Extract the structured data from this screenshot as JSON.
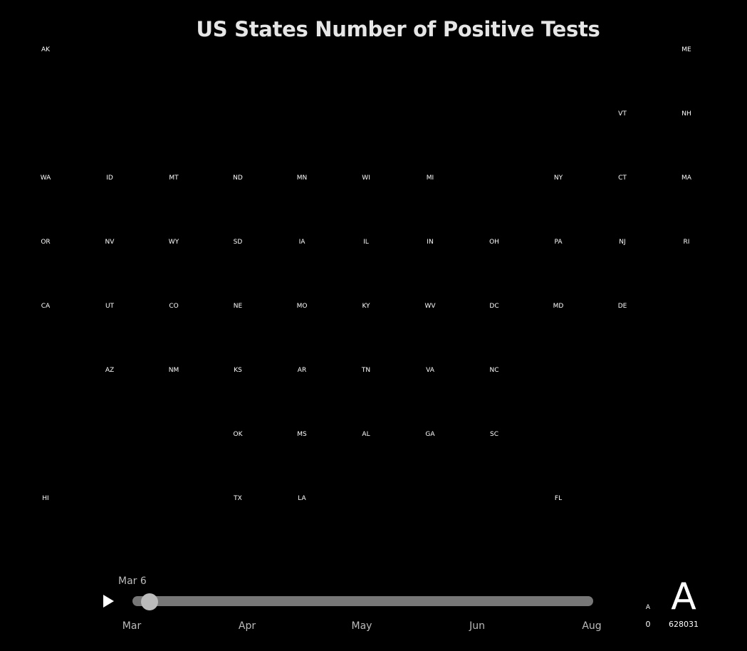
{
  "chart_data": {
    "type": "tile-grid-map",
    "title": "US States Number of Positive Tests",
    "grid_columns": 11,
    "grid_rows": 8,
    "states": [
      {
        "abbr": "AK",
        "col": 0,
        "row": 0
      },
      {
        "abbr": "ME",
        "col": 10,
        "row": 0
      },
      {
        "abbr": "VT",
        "col": 9,
        "row": 1
      },
      {
        "abbr": "NH",
        "col": 10,
        "row": 1
      },
      {
        "abbr": "WA",
        "col": 0,
        "row": 2
      },
      {
        "abbr": "ID",
        "col": 1,
        "row": 2
      },
      {
        "abbr": "MT",
        "col": 2,
        "row": 2
      },
      {
        "abbr": "ND",
        "col": 3,
        "row": 2
      },
      {
        "abbr": "MN",
        "col": 4,
        "row": 2
      },
      {
        "abbr": "WI",
        "col": 5,
        "row": 2
      },
      {
        "abbr": "MI",
        "col": 6,
        "row": 2
      },
      {
        "abbr": "NY",
        "col": 8,
        "row": 2
      },
      {
        "abbr": "CT",
        "col": 9,
        "row": 2
      },
      {
        "abbr": "MA",
        "col": 10,
        "row": 2
      },
      {
        "abbr": "OR",
        "col": 0,
        "row": 3
      },
      {
        "abbr": "NV",
        "col": 1,
        "row": 3
      },
      {
        "abbr": "WY",
        "col": 2,
        "row": 3
      },
      {
        "abbr": "SD",
        "col": 3,
        "row": 3
      },
      {
        "abbr": "IA",
        "col": 4,
        "row": 3
      },
      {
        "abbr": "IL",
        "col": 5,
        "row": 3
      },
      {
        "abbr": "IN",
        "col": 6,
        "row": 3
      },
      {
        "abbr": "OH",
        "col": 7,
        "row": 3
      },
      {
        "abbr": "PA",
        "col": 8,
        "row": 3
      },
      {
        "abbr": "NJ",
        "col": 9,
        "row": 3
      },
      {
        "abbr": "RI",
        "col": 10,
        "row": 3
      },
      {
        "abbr": "CA",
        "col": 0,
        "row": 4
      },
      {
        "abbr": "UT",
        "col": 1,
        "row": 4
      },
      {
        "abbr": "CO",
        "col": 2,
        "row": 4
      },
      {
        "abbr": "NE",
        "col": 3,
        "row": 4
      },
      {
        "abbr": "MO",
        "col": 4,
        "row": 4
      },
      {
        "abbr": "KY",
        "col": 5,
        "row": 4
      },
      {
        "abbr": "WV",
        "col": 6,
        "row": 4
      },
      {
        "abbr": "DC",
        "col": 7,
        "row": 4
      },
      {
        "abbr": "MD",
        "col": 8,
        "row": 4
      },
      {
        "abbr": "DE",
        "col": 9,
        "row": 4
      },
      {
        "abbr": "AZ",
        "col": 1,
        "row": 5
      },
      {
        "abbr": "NM",
        "col": 2,
        "row": 5
      },
      {
        "abbr": "KS",
        "col": 3,
        "row": 5
      },
      {
        "abbr": "AR",
        "col": 4,
        "row": 5
      },
      {
        "abbr": "TN",
        "col": 5,
        "row": 5
      },
      {
        "abbr": "VA",
        "col": 6,
        "row": 5
      },
      {
        "abbr": "NC",
        "col": 7,
        "row": 5
      },
      {
        "abbr": "OK",
        "col": 3,
        "row": 6
      },
      {
        "abbr": "MS",
        "col": 4,
        "row": 6
      },
      {
        "abbr": "AL",
        "col": 5,
        "row": 6
      },
      {
        "abbr": "GA",
        "col": 6,
        "row": 6
      },
      {
        "abbr": "SC",
        "col": 7,
        "row": 6
      },
      {
        "abbr": "HI",
        "col": 0,
        "row": 7
      },
      {
        "abbr": "TX",
        "col": 3,
        "row": 7
      },
      {
        "abbr": "LA",
        "col": 4,
        "row": 7
      },
      {
        "abbr": "FL",
        "col": 8,
        "row": 7
      }
    ],
    "legend": {
      "symbol": "A",
      "min": 0,
      "max": 628031
    }
  },
  "timeline": {
    "current_date": "Mar 6",
    "position_fraction": 0.02,
    "months": [
      "Mar",
      "Apr",
      "May",
      "Jun",
      "Aug"
    ]
  },
  "colors": {
    "background": "#000000",
    "text": "#ffffff",
    "track": "#777777",
    "handle": "#bbbbbb"
  }
}
